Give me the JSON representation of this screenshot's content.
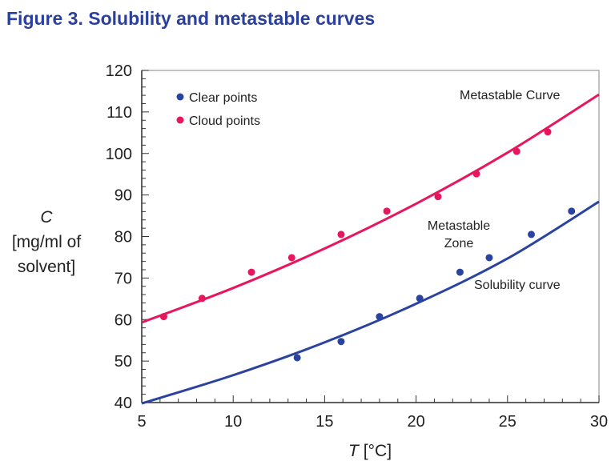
{
  "chart_data": {
    "type": "scatter",
    "title": "Figure 3. Solubility and metastable curves",
    "xlabel_italic": "T",
    "xlabel_unit": "[°C]",
    "ylabel_lines": [
      "C",
      "[mg/ml of",
      "solvent]"
    ],
    "xlim": [
      5,
      30
    ],
    "ylim": [
      40,
      120
    ],
    "xticks": [
      5,
      10,
      15,
      20,
      25,
      30
    ],
    "yticks": [
      40,
      50,
      60,
      70,
      80,
      90,
      100,
      110,
      120
    ],
    "grid": false,
    "legend_position": "top-left",
    "series": [
      {
        "name": "Clear points",
        "color": "#2b43a0",
        "x": [
          13.5,
          15.9,
          18.0,
          20.2,
          22.4,
          24.0,
          26.3,
          28.5
        ],
        "y": [
          50.8,
          54.7,
          60.7,
          65.1,
          71.4,
          74.9,
          80.5,
          86.1
        ]
      },
      {
        "name": "Cloud points",
        "color": "#e8175d",
        "x": [
          6.2,
          8.3,
          11.0,
          13.2,
          15.9,
          18.4,
          21.2,
          23.3,
          25.5,
          27.2
        ],
        "y": [
          60.7,
          65.1,
          71.4,
          74.9,
          80.5,
          86.1,
          89.6,
          95.1,
          100.5,
          105.2
        ]
      }
    ],
    "curves": [
      {
        "label": "Metastable Curve",
        "color": "#e8175d",
        "x": [
          5,
          10,
          15,
          20,
          25,
          30
        ],
        "y": [
          59.3,
          67.6,
          77.1,
          87.9,
          100.2,
          114.2
        ]
      },
      {
        "label": "Solubility curve",
        "color": "#2b43a0",
        "x": [
          5,
          10,
          15,
          20,
          25,
          30
        ],
        "y": [
          39.8,
          46.6,
          54.5,
          63.8,
          74.7,
          88.4
        ]
      }
    ],
    "annotations": [
      "Metastable",
      "Zone"
    ]
  }
}
